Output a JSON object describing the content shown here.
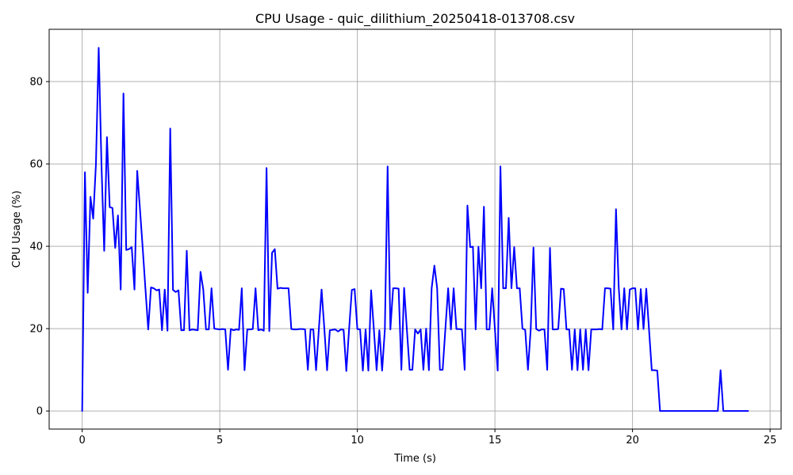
{
  "chart_data": {
    "type": "line",
    "title": "CPU Usage - quic_dilithium_20250418-013708.csv",
    "xlabel": "Time (s)",
    "ylabel": "CPU Usage (%)",
    "xlim": [
      -1.2,
      25.4
    ],
    "ylim": [
      -4.4,
      92.7
    ],
    "xticks": [
      0,
      5,
      10,
      15,
      20,
      25
    ],
    "yticks": [
      0,
      20,
      40,
      60,
      80
    ],
    "xtick_labels": [
      "0",
      "5",
      "10",
      "15",
      "20",
      "25"
    ],
    "ytick_labels": [
      "0",
      "20",
      "40",
      "60",
      "80"
    ],
    "grid": true,
    "color": "#0000ff",
    "series": [
      {
        "x": [
          0.0,
          0.1,
          0.2,
          0.3,
          0.4,
          0.5,
          0.6,
          0.7,
          0.8,
          0.9,
          1.0,
          1.1,
          1.2,
          1.3,
          1.4,
          1.5,
          1.6,
          1.7,
          1.8,
          1.9,
          2.0,
          2.1,
          2.2,
          2.3,
          2.4,
          2.5,
          2.6,
          2.7,
          2.8,
          2.9,
          3.0,
          3.1,
          3.2,
          3.3,
          3.4,
          3.5,
          3.6,
          3.7,
          3.8,
          3.9,
          4.0,
          4.1,
          4.2,
          4.3,
          4.4,
          4.5,
          4.6,
          4.7,
          4.8,
          4.9,
          5.0,
          5.1,
          5.2,
          5.3,
          5.4,
          5.5,
          5.6,
          5.7,
          5.8,
          5.9,
          6.0,
          6.1,
          6.2,
          6.3,
          6.4,
          6.5,
          6.6,
          6.7,
          6.8,
          6.9,
          7.0,
          7.1,
          7.2,
          7.3,
          7.4,
          7.5,
          7.6,
          7.7,
          7.8,
          7.9,
          8.0,
          8.1,
          8.2,
          8.3,
          8.4,
          8.5,
          8.6,
          8.7,
          8.8,
          8.9,
          9.0,
          9.1,
          9.2,
          9.3,
          9.4,
          9.5,
          9.6,
          9.7,
          9.8,
          9.9,
          10.0,
          10.1,
          10.2,
          10.3,
          10.4,
          10.5,
          10.6,
          10.7,
          10.8,
          10.9,
          11.0,
          11.1,
          11.2,
          11.3,
          11.4,
          11.5,
          11.6,
          11.7,
          11.8,
          11.9,
          12.0,
          12.1,
          12.2,
          12.3,
          12.4,
          12.5,
          12.6,
          12.7,
          12.8,
          12.9,
          13.0,
          13.1,
          13.2,
          13.3,
          13.4,
          13.5,
          13.6,
          13.7,
          13.8,
          13.9,
          14.0,
          14.1,
          14.2,
          14.3,
          14.4,
          14.5,
          14.6,
          14.7,
          14.8,
          14.9,
          15.0,
          15.1,
          15.2,
          15.3,
          15.4,
          15.5,
          15.6,
          15.7,
          15.8,
          15.9,
          16.0,
          16.1,
          16.2,
          16.3,
          16.4,
          16.5,
          16.6,
          16.7,
          16.8,
          16.9,
          17.0,
          17.1,
          17.2,
          17.3,
          17.4,
          17.5,
          17.6,
          17.7,
          17.8,
          17.9,
          18.0,
          18.1,
          18.2,
          18.3,
          18.4,
          18.5,
          18.6,
          18.7,
          18.8,
          18.9,
          19.0,
          19.1,
          19.2,
          19.3,
          19.4,
          19.5,
          19.6,
          19.7,
          19.8,
          19.9,
          20.0,
          20.1,
          20.2,
          20.3,
          20.4,
          20.5,
          20.6,
          20.7,
          20.8,
          20.9,
          21.0,
          21.1,
          21.2,
          21.3,
          21.4,
          21.5,
          21.6,
          21.7,
          21.8,
          21.9,
          22.0,
          22.1,
          22.2,
          22.3,
          22.4,
          22.5,
          22.6,
          22.7,
          22.8,
          22.9,
          23.0,
          23.1,
          23.2,
          23.3,
          23.4,
          23.5,
          23.6,
          23.7,
          23.8,
          23.9,
          24.0,
          24.1,
          24.2
        ],
        "y": [
          0,
          58,
          28.7,
          52,
          46.7,
          60,
          88.2,
          60,
          38.9,
          66.5,
          49.5,
          49.3,
          39.6,
          47.5,
          29.5,
          77.1,
          39.1,
          39.3,
          39.8,
          29.5,
          58.3,
          49,
          39.5,
          29.5,
          19.8,
          30,
          29.8,
          29.3,
          29.5,
          19.6,
          29.5,
          19.5,
          68.6,
          29.4,
          28.9,
          29.3,
          19.6,
          19.6,
          38.9,
          19.6,
          19.8,
          19.7,
          19.6,
          33.8,
          29.5,
          19.8,
          19.8,
          29.8,
          20,
          19.9,
          19.8,
          19.9,
          19.8,
          10,
          19.9,
          19.6,
          19.8,
          19.7,
          29.8,
          9.9,
          19.8,
          19.8,
          19.9,
          29.8,
          19.6,
          19.8,
          19.5,
          59,
          19.4,
          38.4,
          39.3,
          29.7,
          29.9,
          29.8,
          29.8,
          29.8,
          19.9,
          19.8,
          19.8,
          19.9,
          19.9,
          19.8,
          10,
          19.8,
          19.8,
          9.9,
          19.8,
          29.5,
          20,
          9.9,
          19.6,
          19.7,
          19.8,
          19.3,
          19.8,
          19.7,
          9.7,
          19.9,
          29.4,
          29.6,
          19.9,
          19.8,
          9.8,
          19.8,
          9.8,
          29.3,
          19.8,
          9.9,
          19.6,
          9.8,
          19.8,
          59.4,
          19.8,
          29.8,
          29.8,
          29.7,
          10,
          29.9,
          19.8,
          10,
          10,
          19.8,
          18.8,
          19.8,
          10,
          20,
          9.9,
          29.8,
          35.3,
          29.8,
          10,
          10,
          20,
          29.8,
          19.8,
          29.8,
          19.9,
          19.9,
          19.8,
          10,
          49.9,
          39.8,
          39.9,
          19.8,
          39.9,
          29.8,
          49.6,
          19.8,
          19.8,
          29.8,
          19.8,
          9.8,
          59.4,
          29.8,
          29.8,
          46.9,
          29.8,
          39.8,
          29.8,
          29.8,
          20,
          19.7,
          10,
          19.8,
          39.7,
          19.9,
          19.5,
          19.8,
          19.8,
          10,
          39.6,
          19.8,
          19.8,
          19.9,
          29.7,
          29.6,
          19.8,
          19.8,
          10,
          19.8,
          9.9,
          19.8,
          10,
          19.8,
          9.9,
          19.8,
          19.8,
          19.8,
          19.9,
          19.8,
          29.8,
          29.8,
          29.7,
          19.8,
          49,
          29.9,
          19.8,
          29.8,
          19.8,
          29.5,
          29.8,
          29.8,
          19.8,
          29.6,
          19.9,
          29.7,
          19.8,
          9.9,
          9.9,
          9.8,
          0,
          0,
          0,
          0,
          0,
          0,
          0,
          0,
          0,
          0,
          0,
          0,
          0,
          0,
          0,
          0,
          0,
          0,
          0,
          0,
          0,
          0,
          9.9,
          0,
          0,
          0,
          0,
          0,
          0,
          0,
          0,
          0,
          0
        ]
      }
    ]
  }
}
